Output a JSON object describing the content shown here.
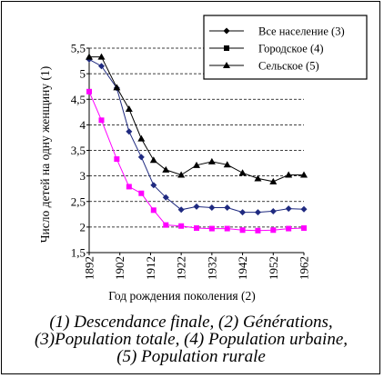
{
  "chart_data": {
    "type": "line",
    "ylabel": "Число детей на одну женщину (1)",
    "xlabel": "Год рождения поколения (2)",
    "ylim": [
      1.5,
      5.5
    ],
    "yticks": [
      "1,5",
      "2",
      "2,5",
      "3",
      "3,5",
      "4",
      "4,5",
      "5",
      "5,5"
    ],
    "xlim": [
      1892,
      1962
    ],
    "xticks": [
      "1892",
      "1902",
      "1912",
      "1922",
      "1932",
      "1942",
      "1952",
      "1962"
    ],
    "x": [
      1892,
      1896,
      1901,
      1905,
      1909,
      1913,
      1917,
      1922,
      1927,
      1932,
      1937,
      1942,
      1947,
      1952,
      1957,
      1962
    ],
    "series": [
      {
        "name": "Все население (3)",
        "color": "#1f2a80",
        "marker": "diamond",
        "values": [
          5.28,
          5.15,
          4.72,
          3.87,
          3.37,
          2.82,
          2.58,
          2.34,
          2.4,
          2.38,
          2.38,
          2.29,
          2.29,
          2.31,
          2.36,
          2.35
        ]
      },
      {
        "name": "Городское (4)",
        "color": "#ff00ff",
        "marker": "square",
        "values": [
          4.65,
          4.09,
          3.33,
          2.79,
          2.66,
          2.33,
          2.04,
          2.02,
          1.98,
          1.97,
          1.97,
          1.94,
          1.93,
          1.94,
          1.97,
          1.98
        ]
      },
      {
        "name": "Сельское (5)",
        "color": "#000000",
        "marker": "triangle",
        "values": [
          5.33,
          5.33,
          4.73,
          4.31,
          3.73,
          3.31,
          3.12,
          3.02,
          3.21,
          3.28,
          3.22,
          3.06,
          2.95,
          2.89,
          3.02,
          3.02
        ]
      }
    ],
    "grid": "horizontal dashed",
    "legend_position": "top-right"
  },
  "caption": {
    "line1": "(1) Descendance finale, (2) Générations,",
    "line2": "(3)Population totale, (4) Population urbaine,",
    "line3": "(5) Population rurale"
  }
}
